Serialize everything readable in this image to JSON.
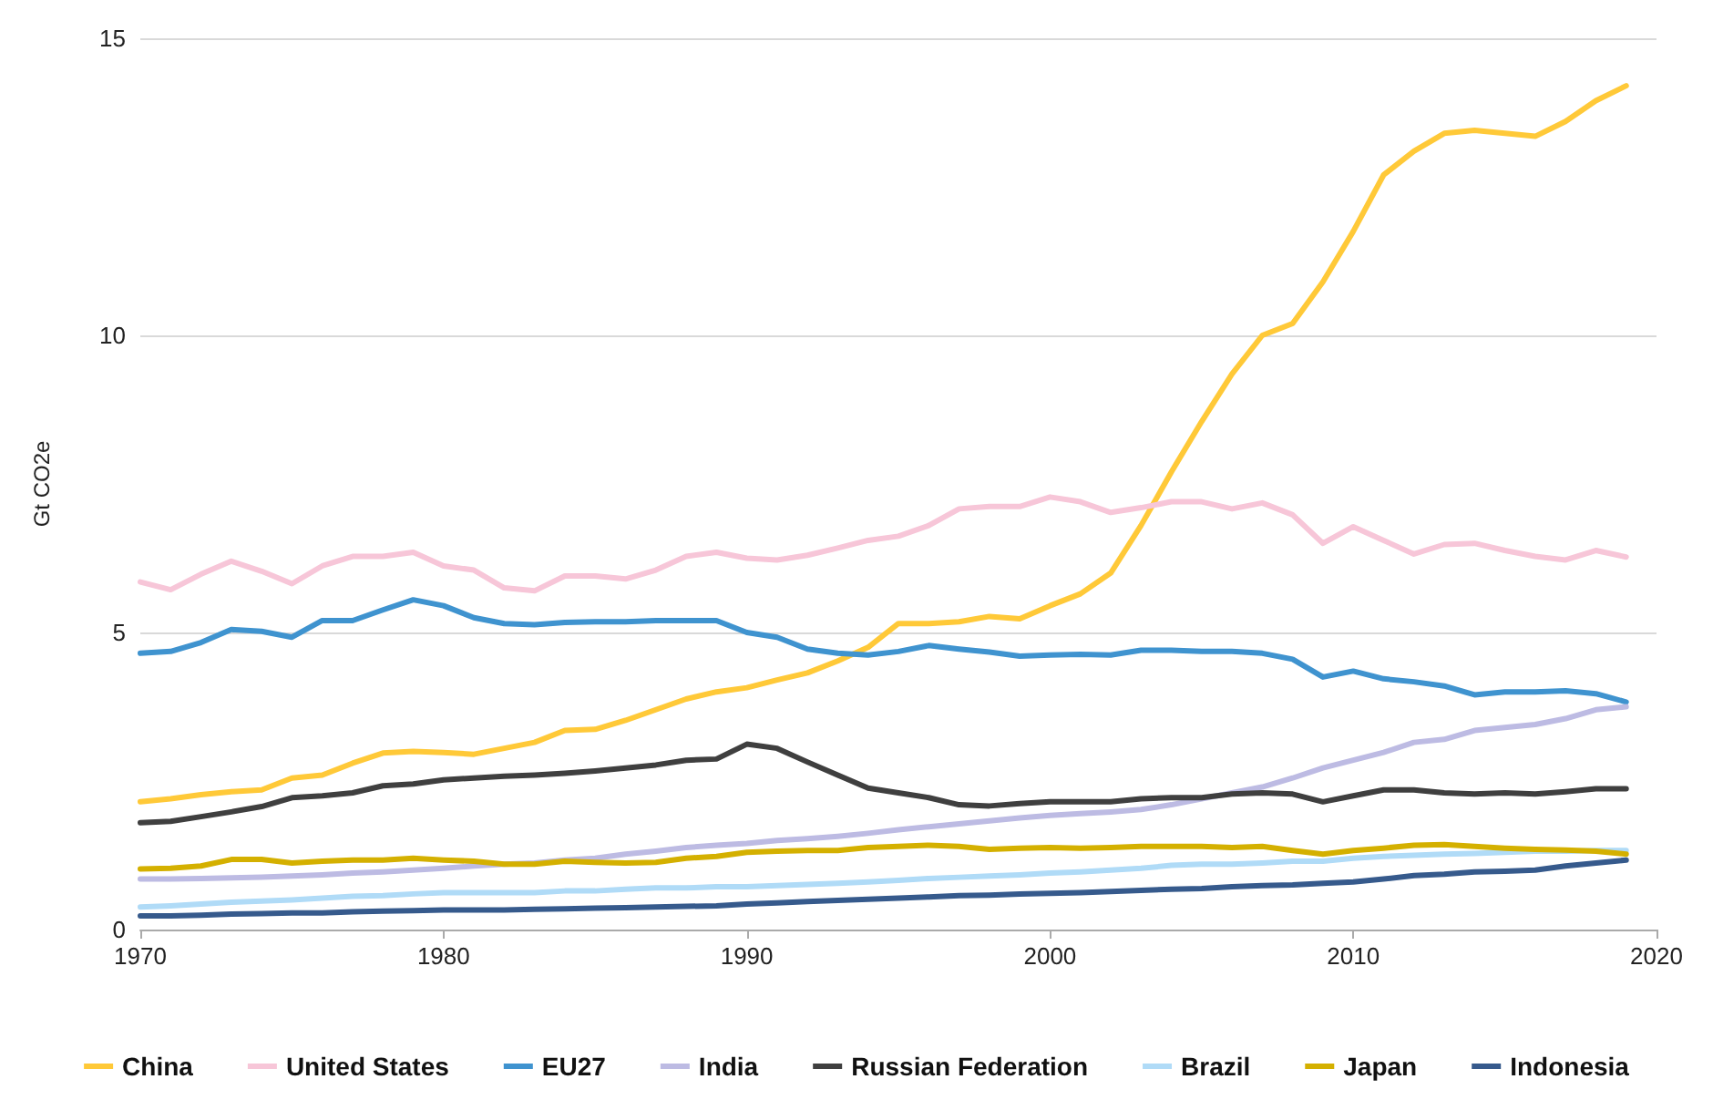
{
  "chart_data": {
    "type": "line",
    "ylabel": "Gt CO2e",
    "x": [
      1970,
      1971,
      1972,
      1973,
      1974,
      1975,
      1976,
      1977,
      1978,
      1979,
      1980,
      1981,
      1982,
      1983,
      1984,
      1985,
      1986,
      1987,
      1988,
      1989,
      1990,
      1991,
      1992,
      1993,
      1994,
      1995,
      1996,
      1997,
      1998,
      1999,
      2000,
      2001,
      2002,
      2003,
      2004,
      2005,
      2006,
      2007,
      2008,
      2009,
      2010,
      2011,
      2012,
      2013,
      2014,
      2015,
      2016,
      2017,
      2018,
      2019
    ],
    "series": [
      {
        "name": "China",
        "color": "#ffc938",
        "values": [
          2.15,
          2.2,
          2.27,
          2.32,
          2.35,
          2.55,
          2.6,
          2.8,
          2.97,
          3.0,
          2.98,
          2.95,
          3.05,
          3.15,
          3.35,
          3.37,
          3.52,
          3.7,
          3.88,
          4.0,
          4.07,
          4.2,
          4.32,
          4.52,
          4.75,
          5.15,
          5.15,
          5.18,
          5.27,
          5.23,
          5.45,
          5.65,
          6.0,
          6.8,
          7.7,
          8.55,
          9.35,
          10.0,
          10.2,
          10.9,
          11.75,
          12.7,
          13.1,
          13.4,
          13.45,
          13.4,
          13.35,
          13.6,
          13.95,
          14.2
        ]
      },
      {
        "name": "United States",
        "color": "#f7c6d8",
        "values": [
          5.85,
          5.72,
          5.98,
          6.2,
          6.03,
          5.82,
          6.12,
          6.28,
          6.28,
          6.35,
          6.12,
          6.05,
          5.75,
          5.7,
          5.95,
          5.95,
          5.9,
          6.05,
          6.28,
          6.35,
          6.25,
          6.22,
          6.3,
          6.42,
          6.55,
          6.62,
          6.8,
          7.08,
          7.12,
          7.12,
          7.28,
          7.2,
          7.02,
          7.1,
          7.2,
          7.2,
          7.08,
          7.18,
          6.98,
          6.5,
          6.78,
          6.55,
          6.32,
          6.48,
          6.5,
          6.38,
          6.28,
          6.22,
          6.38,
          6.27
        ]
      },
      {
        "name": "EU27",
        "color": "#3f93cf",
        "values": [
          4.65,
          4.68,
          4.83,
          5.05,
          5.02,
          4.92,
          5.2,
          5.2,
          5.38,
          5.55,
          5.45,
          5.25,
          5.15,
          5.13,
          5.17,
          5.18,
          5.18,
          5.2,
          5.2,
          5.2,
          5.0,
          4.92,
          4.72,
          4.65,
          4.62,
          4.68,
          4.78,
          4.72,
          4.67,
          4.6,
          4.62,
          4.63,
          4.62,
          4.7,
          4.7,
          4.68,
          4.68,
          4.65,
          4.55,
          4.25,
          4.35,
          4.22,
          4.17,
          4.1,
          3.95,
          4.0,
          4.0,
          4.02,
          3.97,
          3.83
        ]
      },
      {
        "name": "India",
        "color": "#bdbbe3",
        "values": [
          0.85,
          0.85,
          0.86,
          0.87,
          0.88,
          0.9,
          0.92,
          0.95,
          0.97,
          1.0,
          1.03,
          1.07,
          1.1,
          1.12,
          1.17,
          1.2,
          1.27,
          1.32,
          1.38,
          1.42,
          1.45,
          1.5,
          1.53,
          1.57,
          1.62,
          1.68,
          1.73,
          1.78,
          1.83,
          1.88,
          1.92,
          1.95,
          1.98,
          2.02,
          2.1,
          2.2,
          2.3,
          2.4,
          2.55,
          2.72,
          2.85,
          2.98,
          3.15,
          3.2,
          3.35,
          3.4,
          3.45,
          3.55,
          3.7,
          3.75
        ]
      },
      {
        "name": "Russian Federation",
        "color": "#3f3f3f",
        "values": [
          1.8,
          1.82,
          1.9,
          1.98,
          2.07,
          2.22,
          2.25,
          2.3,
          2.42,
          2.45,
          2.52,
          2.55,
          2.58,
          2.6,
          2.63,
          2.67,
          2.72,
          2.77,
          2.85,
          2.87,
          3.12,
          3.05,
          2.82,
          2.6,
          2.38,
          2.3,
          2.22,
          2.1,
          2.08,
          2.12,
          2.15,
          2.15,
          2.15,
          2.2,
          2.22,
          2.22,
          2.28,
          2.3,
          2.28,
          2.15,
          2.25,
          2.35,
          2.35,
          2.3,
          2.28,
          2.3,
          2.28,
          2.32,
          2.37,
          2.37
        ]
      },
      {
        "name": "Brazil",
        "color": "#b0dbf7",
        "values": [
          0.38,
          0.4,
          0.43,
          0.46,
          0.48,
          0.5,
          0.53,
          0.56,
          0.57,
          0.6,
          0.62,
          0.62,
          0.62,
          0.62,
          0.65,
          0.65,
          0.68,
          0.7,
          0.7,
          0.72,
          0.72,
          0.74,
          0.76,
          0.78,
          0.8,
          0.83,
          0.86,
          0.88,
          0.9,
          0.92,
          0.95,
          0.97,
          1.0,
          1.03,
          1.08,
          1.1,
          1.1,
          1.12,
          1.15,
          1.15,
          1.2,
          1.23,
          1.25,
          1.27,
          1.28,
          1.3,
          1.32,
          1.32,
          1.33,
          1.33
        ]
      },
      {
        "name": "Japan",
        "color": "#d4b000",
        "values": [
          1.02,
          1.03,
          1.07,
          1.18,
          1.18,
          1.12,
          1.15,
          1.17,
          1.17,
          1.2,
          1.17,
          1.15,
          1.1,
          1.1,
          1.15,
          1.13,
          1.12,
          1.13,
          1.2,
          1.23,
          1.3,
          1.32,
          1.33,
          1.33,
          1.38,
          1.4,
          1.42,
          1.4,
          1.35,
          1.37,
          1.38,
          1.37,
          1.38,
          1.4,
          1.4,
          1.4,
          1.38,
          1.4,
          1.33,
          1.27,
          1.33,
          1.37,
          1.42,
          1.43,
          1.4,
          1.37,
          1.35,
          1.34,
          1.32,
          1.27
        ]
      },
      {
        "name": "Indonesia",
        "color": "#365a8c",
        "values": [
          0.23,
          0.23,
          0.24,
          0.26,
          0.27,
          0.28,
          0.28,
          0.3,
          0.31,
          0.32,
          0.33,
          0.33,
          0.33,
          0.34,
          0.35,
          0.36,
          0.37,
          0.38,
          0.39,
          0.4,
          0.43,
          0.45,
          0.47,
          0.49,
          0.51,
          0.53,
          0.55,
          0.57,
          0.58,
          0.6,
          0.61,
          0.62,
          0.64,
          0.66,
          0.68,
          0.69,
          0.72,
          0.74,
          0.75,
          0.78,
          0.8,
          0.85,
          0.91,
          0.93,
          0.97,
          0.98,
          1.0,
          1.07,
          1.12,
          1.17
        ]
      }
    ],
    "xlim": [
      1970,
      2020
    ],
    "xticks": [
      1970,
      1980,
      1990,
      2000,
      2010,
      2020
    ],
    "ylim": [
      0,
      15
    ],
    "yticks": [
      0,
      5,
      10,
      15
    ],
    "grid": "y",
    "legend": "bottom",
    "marker": "none",
    "line_style": "solid"
  }
}
